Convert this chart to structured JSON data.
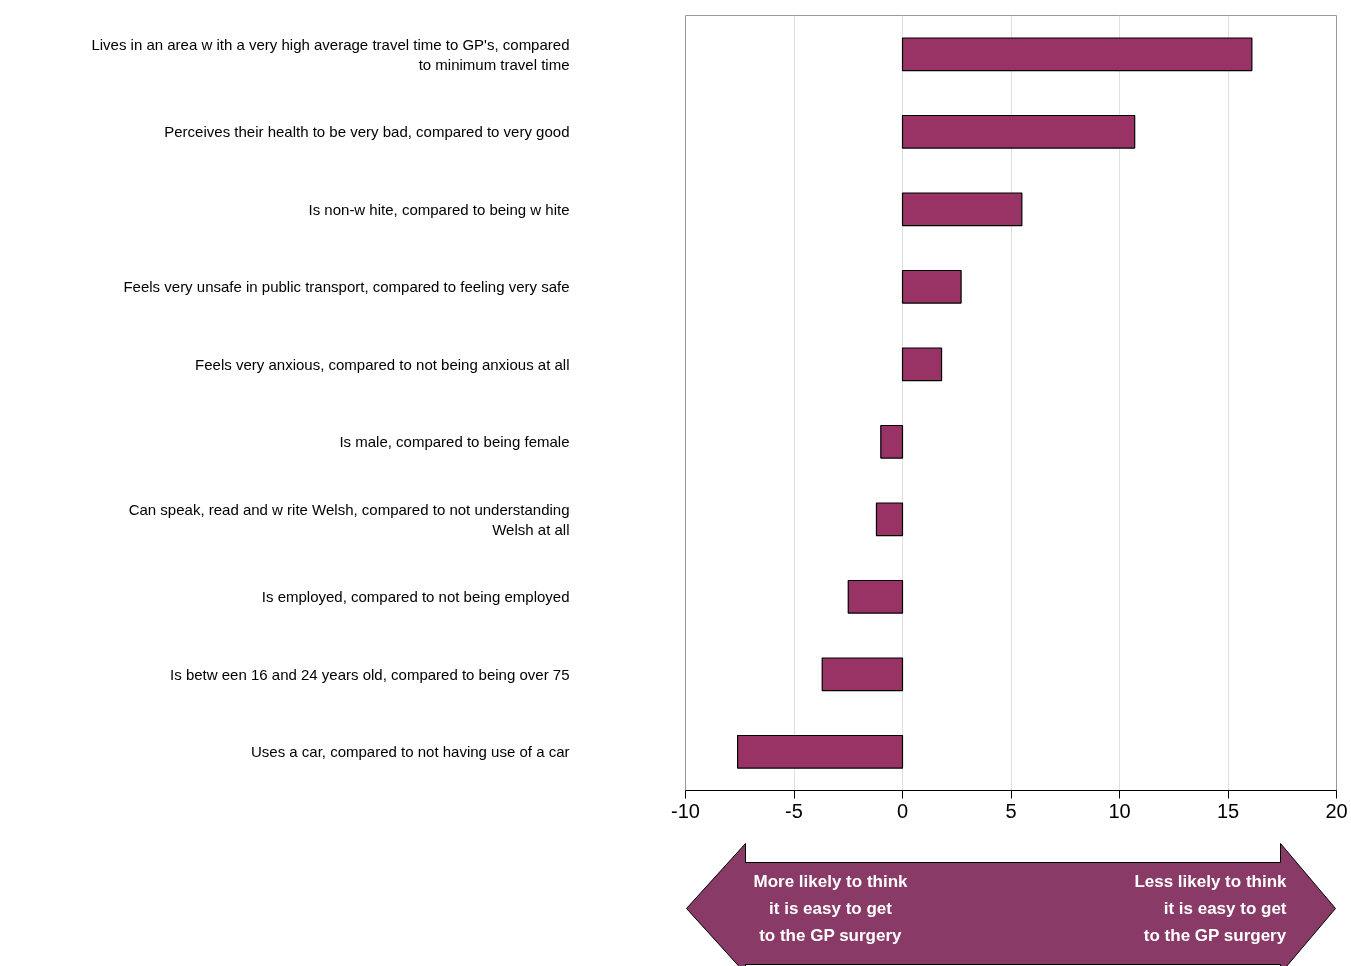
{
  "chart_data": {
    "type": "bar",
    "orientation": "horizontal",
    "categories": [
      "Lives in an area w ith a very high average travel time to GP's, compared\nto minimum travel time",
      "Perceives their health to be very bad, compared to very good",
      "Is non-w hite, compared to being w hite",
      "Feels very unsafe in public transport, compared to feeling very safe",
      "Feels very anxious, compared to not being anxious at all",
      "Is male, compared to being female",
      "Can speak, read and w rite Welsh, compared to not understanding\nWelsh at all",
      "Is employed, compared to not being employed",
      "Is betw een 16 and 24 years old, compared to being over 75",
      "Uses a car, compared to not having use of a car"
    ],
    "values": [
      16.1,
      10.7,
      5.5,
      2.7,
      1.8,
      -1.0,
      -1.2,
      -2.5,
      -3.7,
      -7.6
    ],
    "color": "#993366",
    "xlim": [
      -10,
      20
    ],
    "xticks": [
      -10,
      -5,
      0,
      5,
      10,
      15,
      20
    ],
    "grid": "x",
    "annotations": [
      "More likely to think\nit is easy to get\nto the GP surgery",
      "Less likely to think\nit is easy to get\nto the GP surgery"
    ]
  }
}
